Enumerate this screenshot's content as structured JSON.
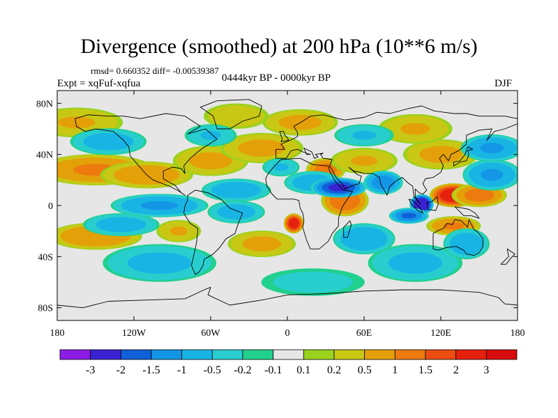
{
  "chart_data": {
    "type": "heatmap",
    "title": "Divergence (smoothed) at 200 hPa (10**6 m/s)",
    "stats_text": "rmsd= 0.660352 diff= -0.00539387",
    "left_label": "Expt = xqFuf-xqfua",
    "center_label": "0444kyr BP - 0000kyr BP",
    "right_label": "DJF",
    "xlim": [
      -180,
      180
    ],
    "ylim": [
      -90,
      90
    ],
    "x_ticks": [
      {
        "value": -180,
        "label": "180"
      },
      {
        "value": -120,
        "label": "120W"
      },
      {
        "value": -60,
        "label": "60W"
      },
      {
        "value": 0,
        "label": "0"
      },
      {
        "value": 60,
        "label": "60E"
      },
      {
        "value": 120,
        "label": "120E"
      },
      {
        "value": 180,
        "label": "180"
      }
    ],
    "y_ticks": [
      {
        "value": 80,
        "label": "80N"
      },
      {
        "value": 40,
        "label": "40N"
      },
      {
        "value": 0,
        "label": "0"
      },
      {
        "value": -40,
        "label": "40S"
      },
      {
        "value": -80,
        "label": "80S"
      }
    ],
    "colorbar": {
      "levels": [
        "-3",
        "-2",
        "-1.5",
        "-1",
        "-0.5",
        "-0.2",
        "-0.1",
        "0.1",
        "0.2",
        "0.5",
        "1",
        "1.5",
        "2",
        "3"
      ],
      "colors": [
        "#8c1ce6",
        "#3a22d2",
        "#1060d8",
        "#1496e6",
        "#18b4e4",
        "#28cece",
        "#22d08e",
        "#e6e6e6",
        "#9ad21e",
        "#c8c814",
        "#e4a008",
        "#ec7a0e",
        "#ec4c10",
        "#e6200e",
        "#d80c0c"
      ]
    },
    "features": [
      {
        "lon": -150,
        "lat": 28,
        "value": 1.0,
        "sx": 30,
        "sy": 8
      },
      {
        "lon": -110,
        "lat": 24,
        "value": 0.8,
        "sx": 24,
        "sy": 7
      },
      {
        "lon": -60,
        "lat": 35,
        "value": 0.6,
        "sx": 20,
        "sy": 8
      },
      {
        "lon": -20,
        "lat": 45,
        "value": 0.6,
        "sx": 22,
        "sy": 8
      },
      {
        "lon": 30,
        "lat": 28,
        "value": 1.2,
        "sx": 10,
        "sy": 6
      },
      {
        "lon": 60,
        "lat": 35,
        "value": 0.5,
        "sx": 18,
        "sy": 7
      },
      {
        "lon": 120,
        "lat": 40,
        "value": 0.6,
        "sx": 20,
        "sy": 8
      },
      {
        "lon": -165,
        "lat": 65,
        "value": 0.5,
        "sx": 25,
        "sy": 8
      },
      {
        "lon": -40,
        "lat": 70,
        "value": 0.4,
        "sx": 18,
        "sy": 7
      },
      {
        "lon": 10,
        "lat": 65,
        "value": 0.6,
        "sx": 20,
        "sy": 7
      },
      {
        "lon": 100,
        "lat": 60,
        "value": 0.5,
        "sx": 20,
        "sy": 8
      },
      {
        "lon": 130,
        "lat": 8,
        "value": 2.5,
        "sx": 12,
        "sy": 6
      },
      {
        "lon": 150,
        "lat": 8,
        "value": 1.2,
        "sx": 14,
        "sy": 6
      },
      {
        "lon": 45,
        "lat": 4,
        "value": 1.4,
        "sx": 12,
        "sy": 8
      },
      {
        "lon": 5,
        "lat": -14,
        "value": 2.3,
        "sx": 5,
        "sy": 5
      },
      {
        "lon": 130,
        "lat": -16,
        "value": 1.0,
        "sx": 14,
        "sy": 5
      },
      {
        "lon": -150,
        "lat": -24,
        "value": 0.9,
        "sx": 24,
        "sy": 7
      },
      {
        "lon": -85,
        "lat": -20,
        "value": 0.5,
        "sx": 12,
        "sy": 6
      },
      {
        "lon": -130,
        "lat": -15,
        "value": -0.7,
        "sx": 20,
        "sy": 6
      },
      {
        "lon": -100,
        "lat": -45,
        "value": -0.6,
        "sx": 30,
        "sy": 10
      },
      {
        "lon": 100,
        "lat": -45,
        "value": -0.6,
        "sx": 25,
        "sy": 10
      },
      {
        "lon": 20,
        "lat": -60,
        "value": -0.3,
        "sx": 30,
        "sy": 8
      },
      {
        "lon": -100,
        "lat": 0,
        "value": -1.0,
        "sx": 25,
        "sy": 6
      },
      {
        "lon": -40,
        "lat": 12,
        "value": -0.8,
        "sx": 18,
        "sy": 6
      },
      {
        "lon": -40,
        "lat": -5,
        "value": -0.7,
        "sx": 15,
        "sy": 6
      },
      {
        "lon": 20,
        "lat": 18,
        "value": -0.8,
        "sx": 15,
        "sy": 6
      },
      {
        "lon": 40,
        "lat": 14,
        "value": -2.0,
        "sx": 14,
        "sy": 5
      },
      {
        "lon": 75,
        "lat": 18,
        "value": -1.3,
        "sx": 10,
        "sy": 6
      },
      {
        "lon": 105,
        "lat": 1,
        "value": -2.8,
        "sx": 6,
        "sy": 5
      },
      {
        "lon": 95,
        "lat": -8,
        "value": -1.5,
        "sx": 10,
        "sy": 4
      },
      {
        "lon": 160,
        "lat": 24,
        "value": -1.0,
        "sx": 15,
        "sy": 8
      },
      {
        "lon": 140,
        "lat": -30,
        "value": -0.8,
        "sx": 12,
        "sy": 8
      },
      {
        "lon": 60,
        "lat": -26,
        "value": -0.9,
        "sx": 16,
        "sy": 8
      },
      {
        "lon": -140,
        "lat": 50,
        "value": -0.7,
        "sx": 20,
        "sy": 7
      },
      {
        "lon": 60,
        "lat": 55,
        "value": -0.5,
        "sx": 16,
        "sy": 6
      },
      {
        "lon": 160,
        "lat": 45,
        "value": -1.0,
        "sx": 16,
        "sy": 7
      },
      {
        "lon": -60,
        "lat": 55,
        "value": -0.5,
        "sx": 14,
        "sy": 6
      },
      {
        "lon": -5,
        "lat": 30,
        "value": -0.5,
        "sx": 10,
        "sy": 5
      },
      {
        "lon": -20,
        "lat": -30,
        "value": 0.6,
        "sx": 18,
        "sy": 7
      }
    ]
  }
}
